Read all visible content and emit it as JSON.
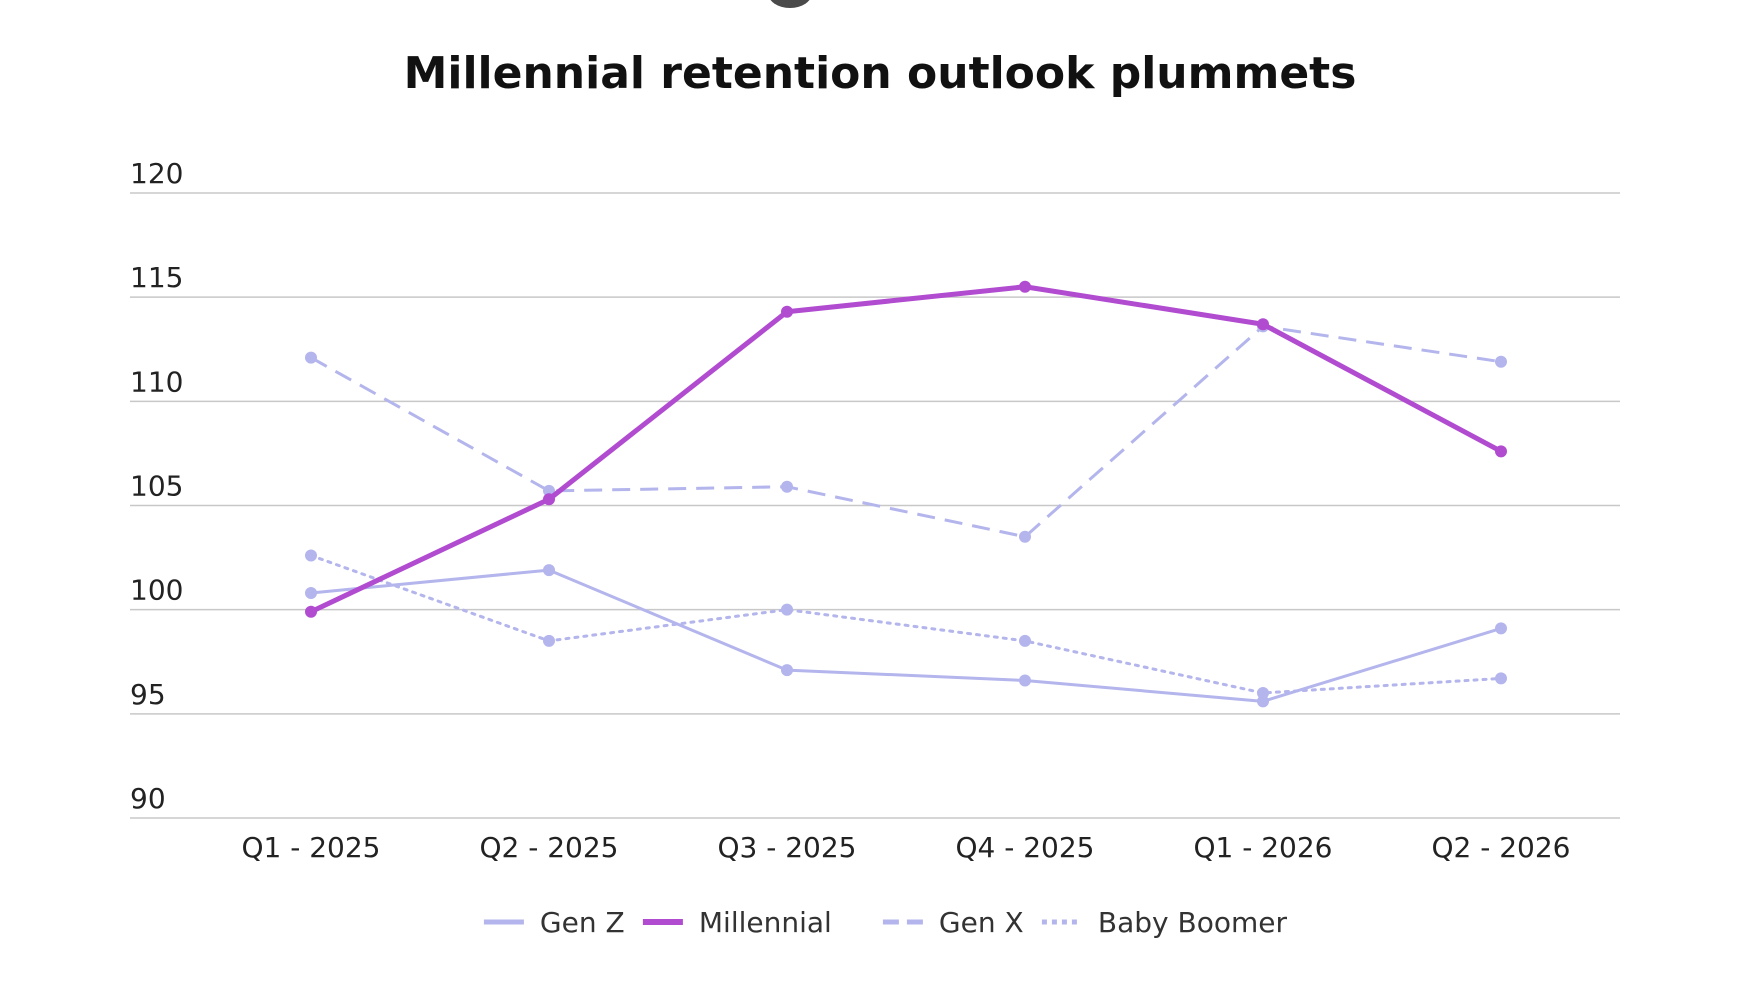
{
  "chart_data": {
    "type": "line",
    "title": "Millennial retention outlook plummets",
    "xlabel": "",
    "ylabel": "",
    "categories": [
      "Q1 - 2025",
      "Q2 - 2025",
      "Q3 - 2025",
      "Q4 - 2025",
      "Q1 - 2026",
      "Q2 - 2026"
    ],
    "ylim": [
      90,
      120
    ],
    "yticks": [
      90,
      95,
      100,
      105,
      110,
      115,
      120
    ],
    "grid": true,
    "legend": "bottom-center",
    "series": [
      {
        "name": "Gen Z",
        "values": [
          100.8,
          101.9,
          97.1,
          96.6,
          95.6,
          99.1
        ],
        "style": "solid",
        "color": "#b3b5ec"
      },
      {
        "name": "Millennial",
        "values": [
          99.9,
          105.3,
          114.3,
          115.5,
          113.7,
          107.6
        ],
        "style": "solid",
        "color": "#b14bd0"
      },
      {
        "name": "Gen X",
        "values": [
          112.1,
          105.7,
          105.9,
          103.5,
          113.6,
          111.9
        ],
        "style": "dashed",
        "color": "#b3b5ec"
      },
      {
        "name": "Baby Boomer",
        "values": [
          102.6,
          98.5,
          100.0,
          98.5,
          96.0,
          96.7
        ],
        "style": "dotted",
        "color": "#b3b5ec"
      }
    ]
  }
}
